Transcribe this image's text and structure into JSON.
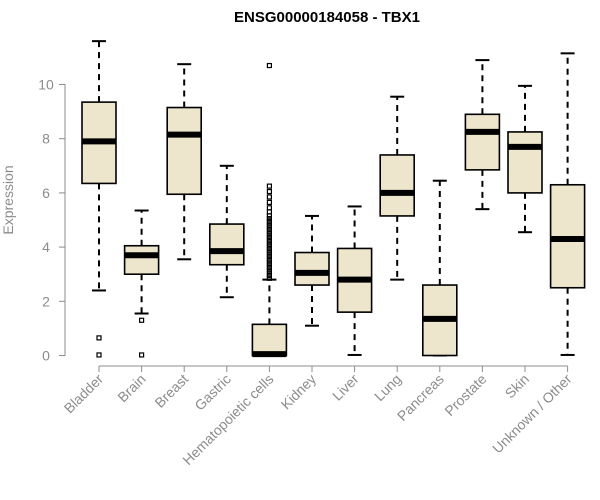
{
  "chart_data": {
    "type": "boxplot",
    "title": "ENSG00000184058 - TBX1",
    "xlabel": "",
    "ylabel": "Expression",
    "ylim": [
      0,
      11.6
    ],
    "yticks": [
      0,
      2,
      4,
      6,
      8,
      10
    ],
    "categories": [
      "Bladder",
      "Brain",
      "Breast",
      "Gastric",
      "Hematopoietic cells",
      "Kidney",
      "Liver",
      "Lung",
      "Pancreas",
      "Prostate",
      "Skin",
      "Unknown / Other"
    ],
    "boxes": [
      {
        "name": "Bladder",
        "min": 2.4,
        "q1": 6.35,
        "median": 7.9,
        "q3": 9.35,
        "max": 11.6,
        "outliers": [
          0.65,
          0.02
        ]
      },
      {
        "name": "Brain",
        "min": 1.55,
        "q1": 3.0,
        "median": 3.7,
        "q3": 4.05,
        "max": 5.35,
        "outliers": [
          1.3,
          0.02
        ]
      },
      {
        "name": "Breast",
        "min": 3.55,
        "q1": 5.95,
        "median": 8.15,
        "q3": 9.15,
        "max": 10.75,
        "outliers": []
      },
      {
        "name": "Gastric",
        "min": 2.15,
        "q1": 3.35,
        "median": 3.85,
        "q3": 4.85,
        "max": 7.0,
        "outliers": []
      },
      {
        "name": "Hematopoietic cells",
        "min": 0.0,
        "q1": 0.0,
        "median": 0.05,
        "q3": 1.15,
        "max": 2.8,
        "outliers": [
          2.85,
          2.95,
          3.05,
          3.15,
          3.25,
          3.35,
          3.45,
          3.55,
          3.65,
          3.75,
          3.85,
          3.95,
          4.05,
          4.15,
          4.25,
          4.35,
          4.45,
          4.55,
          4.65,
          4.75,
          4.85,
          4.95,
          5.05,
          5.15,
          5.3,
          5.45,
          5.65,
          5.85,
          6.05,
          6.25,
          10.7
        ]
      },
      {
        "name": "Kidney",
        "min": 1.1,
        "q1": 2.6,
        "median": 3.05,
        "q3": 3.8,
        "max": 5.15,
        "outliers": []
      },
      {
        "name": "Liver",
        "min": 0.02,
        "q1": 1.6,
        "median": 2.8,
        "q3": 3.95,
        "max": 5.5,
        "outliers": []
      },
      {
        "name": "Lung",
        "min": 2.8,
        "q1": 5.15,
        "median": 6.0,
        "q3": 7.4,
        "max": 9.55,
        "outliers": []
      },
      {
        "name": "Pancreas",
        "min": 0.0,
        "q1": 0.0,
        "median": 1.35,
        "q3": 2.6,
        "max": 6.45,
        "outliers": []
      },
      {
        "name": "Prostate",
        "min": 5.4,
        "q1": 6.85,
        "median": 8.25,
        "q3": 8.9,
        "max": 10.9,
        "outliers": []
      },
      {
        "name": "Skin",
        "min": 4.55,
        "q1": 6.0,
        "median": 7.7,
        "q3": 8.25,
        "max": 9.95,
        "outliers": []
      },
      {
        "name": "Unknown / Other",
        "min": 0.02,
        "q1": 2.5,
        "median": 4.3,
        "q3": 6.3,
        "max": 11.15,
        "outliers": []
      }
    ],
    "colors": {
      "box_fill": "#ede6cc",
      "axis": "#8c8c8c"
    }
  }
}
